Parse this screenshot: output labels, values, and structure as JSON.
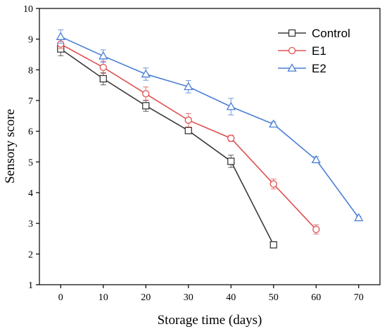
{
  "chart_data": {
    "type": "line",
    "xlabel": "Storage time (days)",
    "ylabel": "Sensory score",
    "xlim": [
      -5,
      75
    ],
    "ylim": [
      1,
      10
    ],
    "xticks": [
      0,
      10,
      20,
      30,
      40,
      50,
      60,
      70
    ],
    "yticks": [
      1,
      2,
      3,
      4,
      5,
      6,
      7,
      8,
      9,
      10
    ],
    "grid": false,
    "legend_position": "top-right",
    "series": [
      {
        "name": "Control",
        "color": "#3a3a3a",
        "marker": "square",
        "x": [
          0,
          10,
          20,
          30,
          40,
          50
        ],
        "y": [
          8.68,
          7.71,
          6.83,
          6.02,
          5.02,
          2.3
        ],
        "err": [
          0.22,
          0.2,
          0.18,
          0.1,
          0.2,
          0.05
        ]
      },
      {
        "name": "E1",
        "color": "#e05050",
        "marker": "circle",
        "x": [
          0,
          10,
          20,
          30,
          40,
          50,
          60
        ],
        "y": [
          8.84,
          8.08,
          7.22,
          6.36,
          5.77,
          4.28,
          2.8
        ],
        "err": [
          0.15,
          0.2,
          0.22,
          0.22,
          0.1,
          0.16,
          0.15
        ]
      },
      {
        "name": "E2",
        "color": "#4a7fd4",
        "marker": "triangle",
        "x": [
          0,
          10,
          20,
          30,
          40,
          50,
          60,
          70
        ],
        "y": [
          9.08,
          8.45,
          7.86,
          7.45,
          6.8,
          6.23,
          5.07,
          3.18
        ],
        "err": [
          0.22,
          0.2,
          0.2,
          0.2,
          0.27,
          0.08,
          0.1,
          0.05
        ]
      }
    ]
  }
}
